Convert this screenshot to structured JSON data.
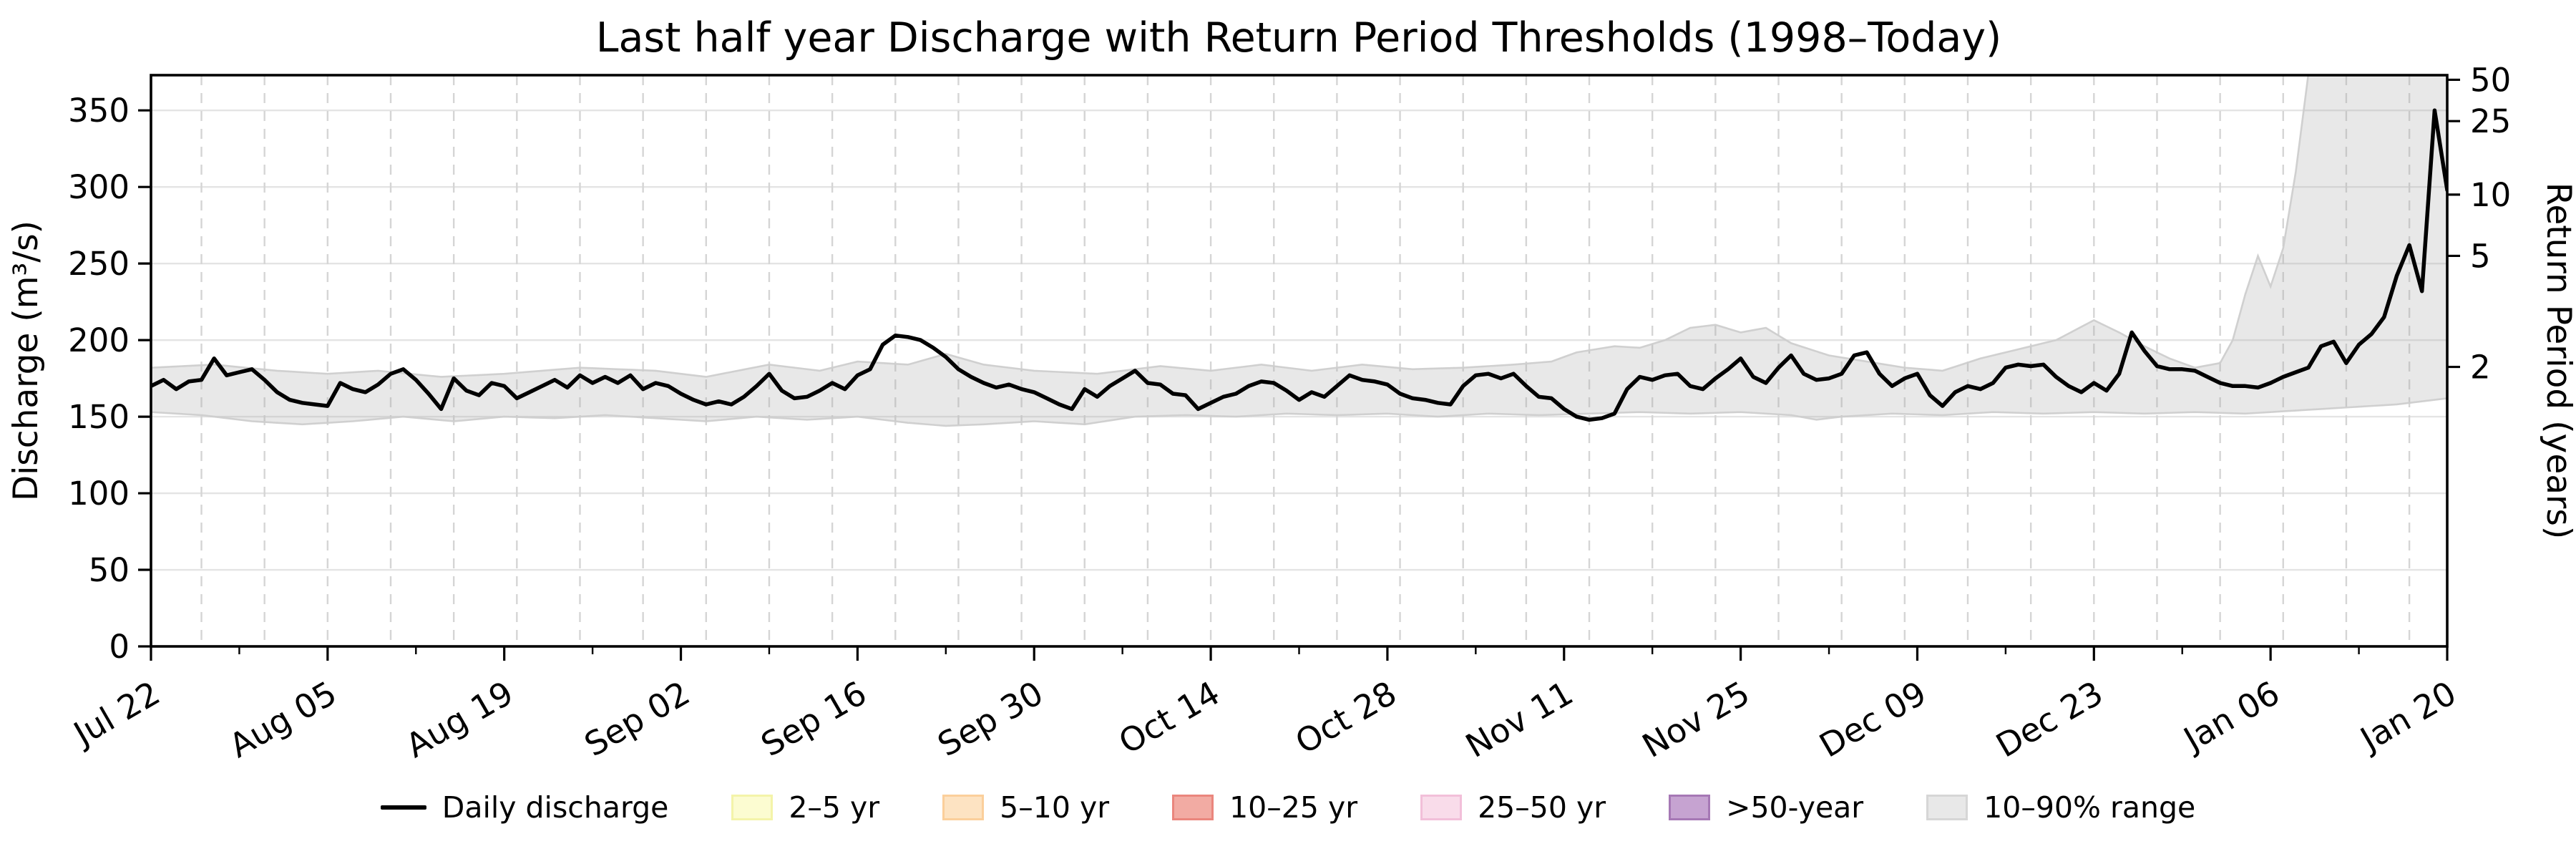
{
  "chart_data": {
    "type": "line",
    "title": "Last half year Discharge with Return Period Thresholds (1998–Today)",
    "x_axis": {
      "total_days": 182,
      "tick_labels": [
        {
          "label": "Jul 22",
          "day": 0
        },
        {
          "label": "Aug 05",
          "day": 14
        },
        {
          "label": "Aug 19",
          "day": 28
        },
        {
          "label": "Sep 02",
          "day": 42
        },
        {
          "label": "Sep 16",
          "day": 56
        },
        {
          "label": "Sep 30",
          "day": 70
        },
        {
          "label": "Oct 14",
          "day": 84
        },
        {
          "label": "Oct 28",
          "day": 98
        },
        {
          "label": "Nov 11",
          "day": 112
        },
        {
          "label": "Nov 25",
          "day": 126
        },
        {
          "label": "Dec 09",
          "day": 140
        },
        {
          "label": "Dec 23",
          "day": 154
        },
        {
          "label": "Jan 06",
          "day": 168
        },
        {
          "label": "Jan 20",
          "day": 182
        }
      ],
      "minor_tick_interval_days": 7,
      "dashed_gridline_interval_days": 5,
      "label_rotation_deg": 30
    },
    "y_left": {
      "label": "Discharge (m³/s)",
      "ticks": [
        0,
        50,
        100,
        150,
        200,
        250,
        300,
        350
      ],
      "range": [
        0,
        373
      ],
      "gridlines": "solid light gray"
    },
    "y_right": {
      "label": "Return Period (years)",
      "ticks": [
        {
          "label": "2",
          "discharge": 182.5
        },
        {
          "label": "5",
          "discharge": 255
        },
        {
          "label": "10",
          "discharge": 295
        },
        {
          "label": "25",
          "discharge": 343
        },
        {
          "label": "50",
          "discharge": 370
        }
      ]
    },
    "series": [
      {
        "name": "Daily discharge",
        "color": "#000000",
        "line_width": 5.5,
        "start_date_label": "Jul 22",
        "end_date_label": "Jan 20",
        "values": [
          170,
          174,
          168,
          173,
          174,
          188,
          177,
          179,
          181,
          174,
          166,
          161,
          159,
          158,
          157,
          172,
          168,
          166,
          171,
          178,
          181,
          174,
          165,
          155,
          175,
          167,
          164,
          172,
          170,
          162,
          166,
          170,
          174,
          169,
          177,
          172,
          176,
          172,
          177,
          168,
          172,
          170,
          165,
          161,
          158,
          160,
          158,
          163,
          170,
          178,
          167,
          162,
          163,
          167,
          172,
          168,
          177,
          181,
          197,
          203,
          202,
          200,
          195,
          189,
          181,
          176,
          172,
          169,
          171,
          168,
          166,
          162,
          158,
          155,
          168,
          163,
          170,
          175,
          180,
          172,
          171,
          165,
          164,
          155,
          159,
          163,
          165,
          170,
          173,
          172,
          167,
          161,
          166,
          163,
          170,
          177,
          174,
          173,
          171,
          165,
          162,
          161,
          159,
          158,
          170,
          177,
          178,
          175,
          178,
          170,
          163,
          162,
          155,
          150,
          148,
          149,
          152,
          168,
          176,
          174,
          177,
          178,
          170,
          168,
          175,
          181,
          188,
          176,
          172,
          182,
          190,
          178,
          174,
          175,
          178,
          190,
          192,
          178,
          170,
          175,
          178,
          164,
          157,
          166,
          170,
          168,
          172,
          182,
          184,
          183,
          184,
          176,
          170,
          166,
          172,
          167,
          178,
          205,
          193,
          183,
          181,
          181,
          180,
          176,
          172,
          170,
          170,
          169,
          172,
          176,
          179,
          182,
          196,
          199,
          185,
          197,
          204,
          215,
          242,
          262,
          232,
          350,
          298
        ]
      }
    ],
    "band": {
      "name": "10–90% range",
      "fill": "rgba(172,172,172,0.28)",
      "edge": "rgba(205,205,205,0.95)",
      "upper_keypoints": [
        [
          0,
          182
        ],
        [
          5,
          184
        ],
        [
          10,
          180
        ],
        [
          14,
          178
        ],
        [
          18,
          180
        ],
        [
          23,
          176
        ],
        [
          28,
          178
        ],
        [
          34,
          182
        ],
        [
          40,
          180
        ],
        [
          44,
          176
        ],
        [
          49,
          184
        ],
        [
          53,
          180
        ],
        [
          56,
          186
        ],
        [
          60,
          184
        ],
        [
          63,
          191
        ],
        [
          66,
          184
        ],
        [
          70,
          180
        ],
        [
          75,
          178
        ],
        [
          80,
          183
        ],
        [
          84,
          180
        ],
        [
          88,
          184
        ],
        [
          92,
          180
        ],
        [
          96,
          184
        ],
        [
          100,
          181
        ],
        [
          104,
          182
        ],
        [
          108,
          184
        ],
        [
          111,
          186
        ],
        [
          113,
          192
        ],
        [
          116,
          196
        ],
        [
          118,
          195
        ],
        [
          120,
          200
        ],
        [
          122,
          208
        ],
        [
          124,
          210
        ],
        [
          126,
          205
        ],
        [
          128,
          208
        ],
        [
          130,
          198
        ],
        [
          133,
          190
        ],
        [
          136,
          186
        ],
        [
          139,
          182
        ],
        [
          142,
          180
        ],
        [
          145,
          188
        ],
        [
          148,
          194
        ],
        [
          151,
          200
        ],
        [
          154,
          213
        ],
        [
          156,
          205
        ],
        [
          158,
          196
        ],
        [
          160,
          188
        ],
        [
          162,
          182
        ],
        [
          164,
          185
        ],
        [
          165,
          200
        ],
        [
          166,
          230
        ],
        [
          167,
          255
        ],
        [
          168,
          235
        ],
        [
          169,
          260
        ],
        [
          170,
          310
        ],
        [
          171,
          374
        ],
        [
          172,
          385
        ],
        [
          182,
          385
        ]
      ],
      "lower_keypoints": [
        [
          0,
          153
        ],
        [
          4,
          151
        ],
        [
          8,
          147
        ],
        [
          12,
          145
        ],
        [
          16,
          147
        ],
        [
          20,
          150
        ],
        [
          24,
          147
        ],
        [
          28,
          150
        ],
        [
          32,
          149
        ],
        [
          36,
          151
        ],
        [
          40,
          149
        ],
        [
          44,
          147
        ],
        [
          48,
          150
        ],
        [
          52,
          148
        ],
        [
          56,
          150
        ],
        [
          60,
          146
        ],
        [
          63,
          144
        ],
        [
          66,
          145
        ],
        [
          70,
          147
        ],
        [
          74,
          145
        ],
        [
          78,
          150
        ],
        [
          82,
          151
        ],
        [
          86,
          150
        ],
        [
          90,
          152
        ],
        [
          94,
          151
        ],
        [
          98,
          152
        ],
        [
          102,
          150
        ],
        [
          106,
          152
        ],
        [
          110,
          151
        ],
        [
          114,
          152
        ],
        [
          118,
          153
        ],
        [
          122,
          152
        ],
        [
          126,
          153
        ],
        [
          130,
          151
        ],
        [
          132,
          148
        ],
        [
          134,
          150
        ],
        [
          138,
          152
        ],
        [
          142,
          151
        ],
        [
          146,
          153
        ],
        [
          150,
          152
        ],
        [
          154,
          153
        ],
        [
          158,
          152
        ],
        [
          162,
          153
        ],
        [
          166,
          152
        ],
        [
          170,
          154
        ],
        [
          174,
          156
        ],
        [
          178,
          158
        ],
        [
          180,
          160
        ],
        [
          182,
          162
        ]
      ]
    },
    "thresholds": [
      {
        "band": "2–5 yr",
        "from_discharge": 182.5,
        "to_discharge": 255
      },
      {
        "band": "5–10 yr",
        "from_discharge": 255,
        "to_discharge": 295
      },
      {
        "band": "10–25 yr",
        "from_discharge": 295,
        "to_discharge": 343
      },
      {
        "band": "25–50 yr",
        "from_discharge": 343,
        "to_discharge": 370
      },
      {
        "band": ">50-year",
        "from_discharge": 370,
        "to_discharge": null
      }
    ]
  },
  "legend": {
    "items": [
      {
        "label": "Daily discharge",
        "type": "line",
        "color": "#000000"
      },
      {
        "label": "2–5 yr",
        "type": "patch",
        "fill": "#fcfcd1",
        "edge": "#f4f4a9"
      },
      {
        "label": "5–10 yr",
        "type": "patch",
        "fill": "#fde3c2",
        "edge": "#fbcf9b"
      },
      {
        "label": "10–25 yr",
        "type": "patch",
        "fill": "#f2aba3",
        "edge": "#ea867d"
      },
      {
        "label": "25–50 yr",
        "type": "patch",
        "fill": "#f9dcea",
        "edge": "#f2bfd9"
      },
      {
        "label": ">50-year",
        "type": "patch",
        "fill": "#c6a3d1",
        "edge": "#a678b5"
      },
      {
        "label": "10–90% range",
        "type": "patch",
        "fill": "#e8e8e8",
        "edge": "#d6d6d6"
      }
    ]
  },
  "colors": {
    "plot_background": "#ffffff",
    "spine": "#000000",
    "h_gridline": "#e4e4e4",
    "v_gridline_dashed": "#d5d5d5",
    "tick_text": "#000000"
  }
}
